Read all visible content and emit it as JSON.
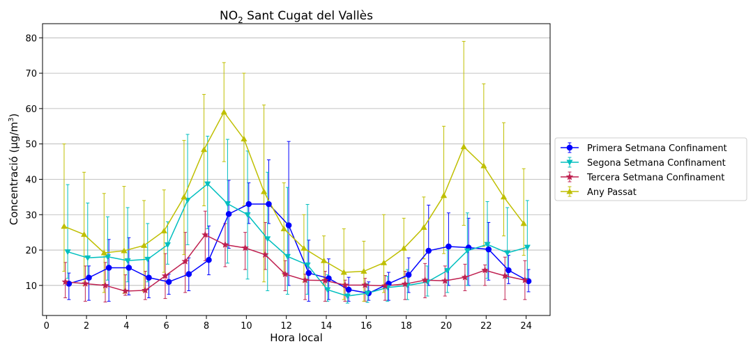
{
  "chart_data": {
    "type": "line",
    "title": {
      "main": "NO",
      "sub": "2",
      "rest": " Sant Cugat del Vallès"
    },
    "xlabel": "Hora local",
    "ylabel": {
      "main": "Concentració (μg/m",
      "sup": "3",
      "end": ")"
    },
    "xlim": [
      -0.2,
      25.2
    ],
    "ylim": [
      1.5,
      84
    ],
    "xticks": [
      0,
      2,
      4,
      6,
      8,
      10,
      12,
      14,
      16,
      18,
      20,
      22,
      24
    ],
    "yticks": [
      10,
      20,
      30,
      40,
      50,
      60,
      70,
      80
    ],
    "grid": "y",
    "legend_position": "right",
    "series": [
      {
        "name": "Primera Setmana Confinament",
        "color": "#0000ff",
        "marker": "circle",
        "x_offset": 0.12,
        "x": [
          1,
          2,
          3,
          4,
          5,
          6,
          7,
          8,
          9,
          10,
          11,
          12,
          13,
          14,
          15,
          16,
          17,
          18,
          19,
          20,
          21,
          22,
          23,
          24
        ],
        "values": [
          10.5,
          12.2,
          15,
          15,
          12.2,
          11,
          13.2,
          17.2,
          30.2,
          33,
          33,
          27,
          13.5,
          12,
          8.8,
          7.8,
          10.5,
          13,
          19.8,
          21,
          20.7,
          20.2,
          14.3,
          11.2
        ],
        "err_low": [
          6,
          5.8,
          5.5,
          7.3,
          6.5,
          7.5,
          8.5,
          13,
          20.5,
          27.5,
          27.5,
          10,
          5.5,
          6,
          5.5,
          5.8,
          5.8,
          8,
          10,
          10,
          10,
          11.5,
          10.5,
          8.2
        ],
        "err_high": [
          13.5,
          15.5,
          23,
          23.5,
          17.8,
          13.2,
          17.8,
          26.8,
          39.7,
          39,
          45.5,
          50.7,
          22.8,
          17.5,
          12.3,
          11,
          13.7,
          17.8,
          32.7,
          30.5,
          29,
          27.8,
          18.5,
          14.5
        ]
      },
      {
        "name": "Segona Setmana Confinament",
        "color": "#00bfbf",
        "marker": "triangle_down",
        "x_offset": 0.06,
        "x": [
          1,
          2,
          3,
          4,
          5,
          6,
          7,
          8,
          9,
          10,
          11,
          12,
          13,
          14,
          15,
          16,
          17,
          18,
          19,
          20,
          21,
          22,
          23,
          24
        ],
        "values": [
          19.5,
          17.8,
          18.1,
          17,
          17.4,
          21.5,
          34.1,
          38.7,
          33.1,
          30,
          23.2,
          18.2,
          15.8,
          8.8,
          7,
          7.8,
          9.4,
          10,
          11,
          14.2,
          19.8,
          21.6,
          19.2,
          20.8
        ],
        "err_low": [
          12,
          12,
          11.5,
          11,
          11,
          16,
          21.5,
          26,
          16.3,
          11.8,
          8.5,
          7.5,
          7.5,
          5.5,
          5,
          5.2,
          5.5,
          6,
          7,
          8,
          10,
          12,
          12,
          12
        ],
        "err_high": [
          38.5,
          33.3,
          29.4,
          32,
          27.5,
          28,
          52.7,
          52.2,
          51.3,
          48,
          42,
          37.7,
          32.9,
          13,
          9,
          10.5,
          12.6,
          14.5,
          15.5,
          20,
          30.5,
          33.7,
          32,
          34
        ]
      },
      {
        "name": "Tercera Setmana Confinament",
        "color": "#bf1f4f",
        "marker": "star",
        "x_offset": -0.06,
        "x": [
          1,
          2,
          3,
          4,
          5,
          6,
          7,
          8,
          9,
          10,
          11,
          12,
          13,
          14,
          15,
          16,
          17,
          18,
          19,
          20,
          21,
          22,
          23,
          24
        ],
        "values": [
          11,
          10.5,
          10,
          8.4,
          8.6,
          12.7,
          16.8,
          24.3,
          21.5,
          20.6,
          18.7,
          13.2,
          11.5,
          11.4,
          10.1,
          10.1,
          9.9,
          10.4,
          11.5,
          11.3,
          12.3,
          14.3,
          12.7,
          11.5
        ],
        "err_low": [
          6.5,
          5.5,
          5.3,
          7.2,
          6,
          6.3,
          8,
          17,
          15.3,
          14.5,
          14.5,
          8.5,
          6,
          5.5,
          5.5,
          5.5,
          5.8,
          6,
          6.5,
          7,
          8.5,
          10,
          6,
          6
        ],
        "err_high": [
          16.5,
          15.5,
          16.5,
          13,
          14,
          19,
          25,
          31,
          27.5,
          25,
          27.8,
          17,
          13.2,
          14,
          11.5,
          12,
          12.8,
          14,
          16.2,
          15.5,
          16,
          15.8,
          18,
          17
        ]
      },
      {
        "name": "Any Passat",
        "color": "#bfbf00",
        "marker": "triangle_up",
        "x_offset": -0.12,
        "x": [
          1,
          2,
          3,
          4,
          5,
          6,
          7,
          8,
          9,
          10,
          11,
          12,
          13,
          14,
          15,
          16,
          17,
          18,
          19,
          20,
          21,
          22,
          23,
          24
        ],
        "values": [
          26.7,
          24.4,
          19.2,
          19.8,
          21.3,
          25.4,
          35,
          48.4,
          59,
          51.4,
          36.5,
          26,
          20.5,
          17,
          13.7,
          14,
          16.4,
          20.5,
          26.4,
          35.4,
          49.2,
          43.8,
          35,
          27.5
        ],
        "err_low": [
          14,
          10,
          8,
          7.8,
          8.3,
          13.7,
          18.7,
          32.5,
          45,
          32.5,
          11,
          13,
          11,
          10,
          6,
          5.5,
          8,
          12,
          17.5,
          19,
          27,
          21,
          24,
          18.5
        ],
        "err_high": [
          50,
          42,
          36,
          38,
          34,
          37,
          51,
          64,
          73,
          70,
          61,
          39,
          30,
          24,
          26,
          22.5,
          30,
          29,
          35,
          55,
          79,
          67,
          56,
          43
        ]
      }
    ]
  }
}
